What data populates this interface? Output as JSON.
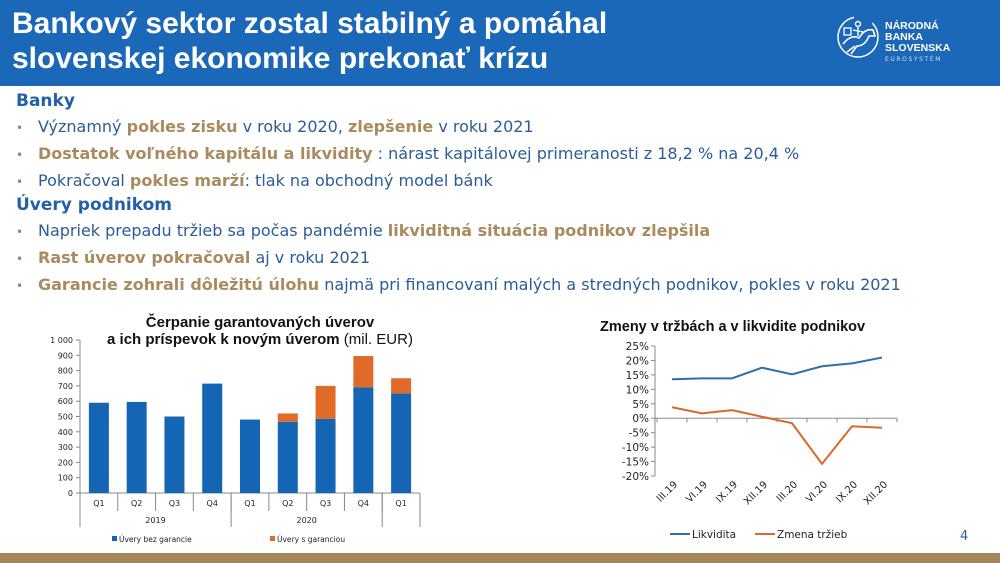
{
  "header": {
    "title_line1": "Bankový sektor zostal stabilný a pomáhal",
    "title_line2": "slovenskej ekonomike prekonať krízu",
    "logo": {
      "line1": "NÁRODNÁ",
      "line2": "BANKA",
      "line3": "SLOVENSKA",
      "sub": "EUROSYSTÉM"
    }
  },
  "sections": [
    {
      "heading": "Banky",
      "bullets": [
        [
          {
            "t": "Významný "
          },
          {
            "t": "pokles zisku",
            "b": 1
          },
          {
            "t": " v roku 2020, "
          },
          {
            "t": "zlepšenie",
            "b": 1
          },
          {
            "t": " v roku 2021"
          }
        ],
        [
          {
            "t": "Dostatok voľného kapitálu a likvidity",
            "b": 1
          },
          {
            "t": " : nárast kapitálovej primeranosti z 18,2 % na 20,4 %"
          }
        ],
        [
          {
            "t": "Pokračoval "
          },
          {
            "t": "pokles marží",
            "b": 1
          },
          {
            "t": ": tlak na obchodný model bánk"
          }
        ]
      ]
    },
    {
      "heading": "Úvery podnikom",
      "bullets": [
        [
          {
            "t": "Napriek prepadu tržieb sa počas pandémie "
          },
          {
            "t": "likviditná situácia podnikov zlepšila",
            "b": 1
          }
        ],
        [
          {
            "t": "Rast úverov pokračoval",
            "b": 1
          },
          {
            "t": " aj v roku 2021"
          }
        ],
        [
          {
            "t": "Garancie zohrali dôležitú úlohu",
            "b": 1
          },
          {
            "t": " najmä pri financovaní malých a stredných podnikov, pokles v roku 2021"
          }
        ]
      ]
    }
  ],
  "colors": {
    "header": "#1c68b8",
    "text": "#2b5c98",
    "highlight": "#a98b5d",
    "bar_blue": "#1565b5",
    "bar_orange": "#e06a2a",
    "line_blue": "#2e6fb0",
    "line_orange": "#d9672e",
    "footer": "#a5865a"
  },
  "page_number": "4",
  "chart_data": [
    {
      "type": "bar",
      "stacked": true,
      "title_bold1": "Čerpanie garantovaných úverov",
      "title_bold2": "a ich príspevok k novým úverom",
      "title_unit": "(mil. EUR)",
      "categories": [
        "Q1",
        "Q2",
        "Q3",
        "Q4",
        "Q1",
        "Q2",
        "Q3",
        "Q4",
        "Q1"
      ],
      "groups": [
        {
          "label": "2019",
          "span": 4
        },
        {
          "label": "2020",
          "span": 4
        },
        {
          "label": "",
          "span": 1
        }
      ],
      "yticks": [
        "0",
        "100",
        "200",
        "300",
        "400",
        "500",
        "600",
        "700",
        "800",
        "900",
        "1 000"
      ],
      "ylim": [
        0,
        1000
      ],
      "series": [
        {
          "name": "Úvery bez garancie",
          "values": [
            590,
            595,
            500,
            715,
            480,
            465,
            485,
            690,
            650
          ]
        },
        {
          "name": "Úvery s garanciou",
          "values": [
            0,
            0,
            0,
            0,
            0,
            55,
            215,
            205,
            100
          ]
        }
      ],
      "legend": "bottom"
    },
    {
      "type": "line",
      "title": "Zmeny v tržbách a v likvidite podnikov",
      "categories": [
        "III.19",
        "VI.19",
        "IX.19",
        "XII.19",
        "III.20",
        "VI.20",
        "IX.20",
        "XII.20"
      ],
      "yticks": [
        "25%",
        "20%",
        "15%",
        "10%",
        "5%",
        "0%",
        "-5%",
        "-10%",
        "-15%",
        "-20%"
      ],
      "ylim": [
        -20,
        25
      ],
      "series": [
        {
          "name": "Likvidita",
          "values": [
            13.5,
            13.8,
            13.8,
            17.5,
            15.2,
            18,
            19,
            21
          ]
        },
        {
          "name": "Zmena tržieb",
          "values": [
            3.8,
            1.7,
            2.8,
            0.5,
            -1.7,
            -15.8,
            -2.8,
            -3.3
          ]
        }
      ],
      "legend": "bottom"
    }
  ]
}
